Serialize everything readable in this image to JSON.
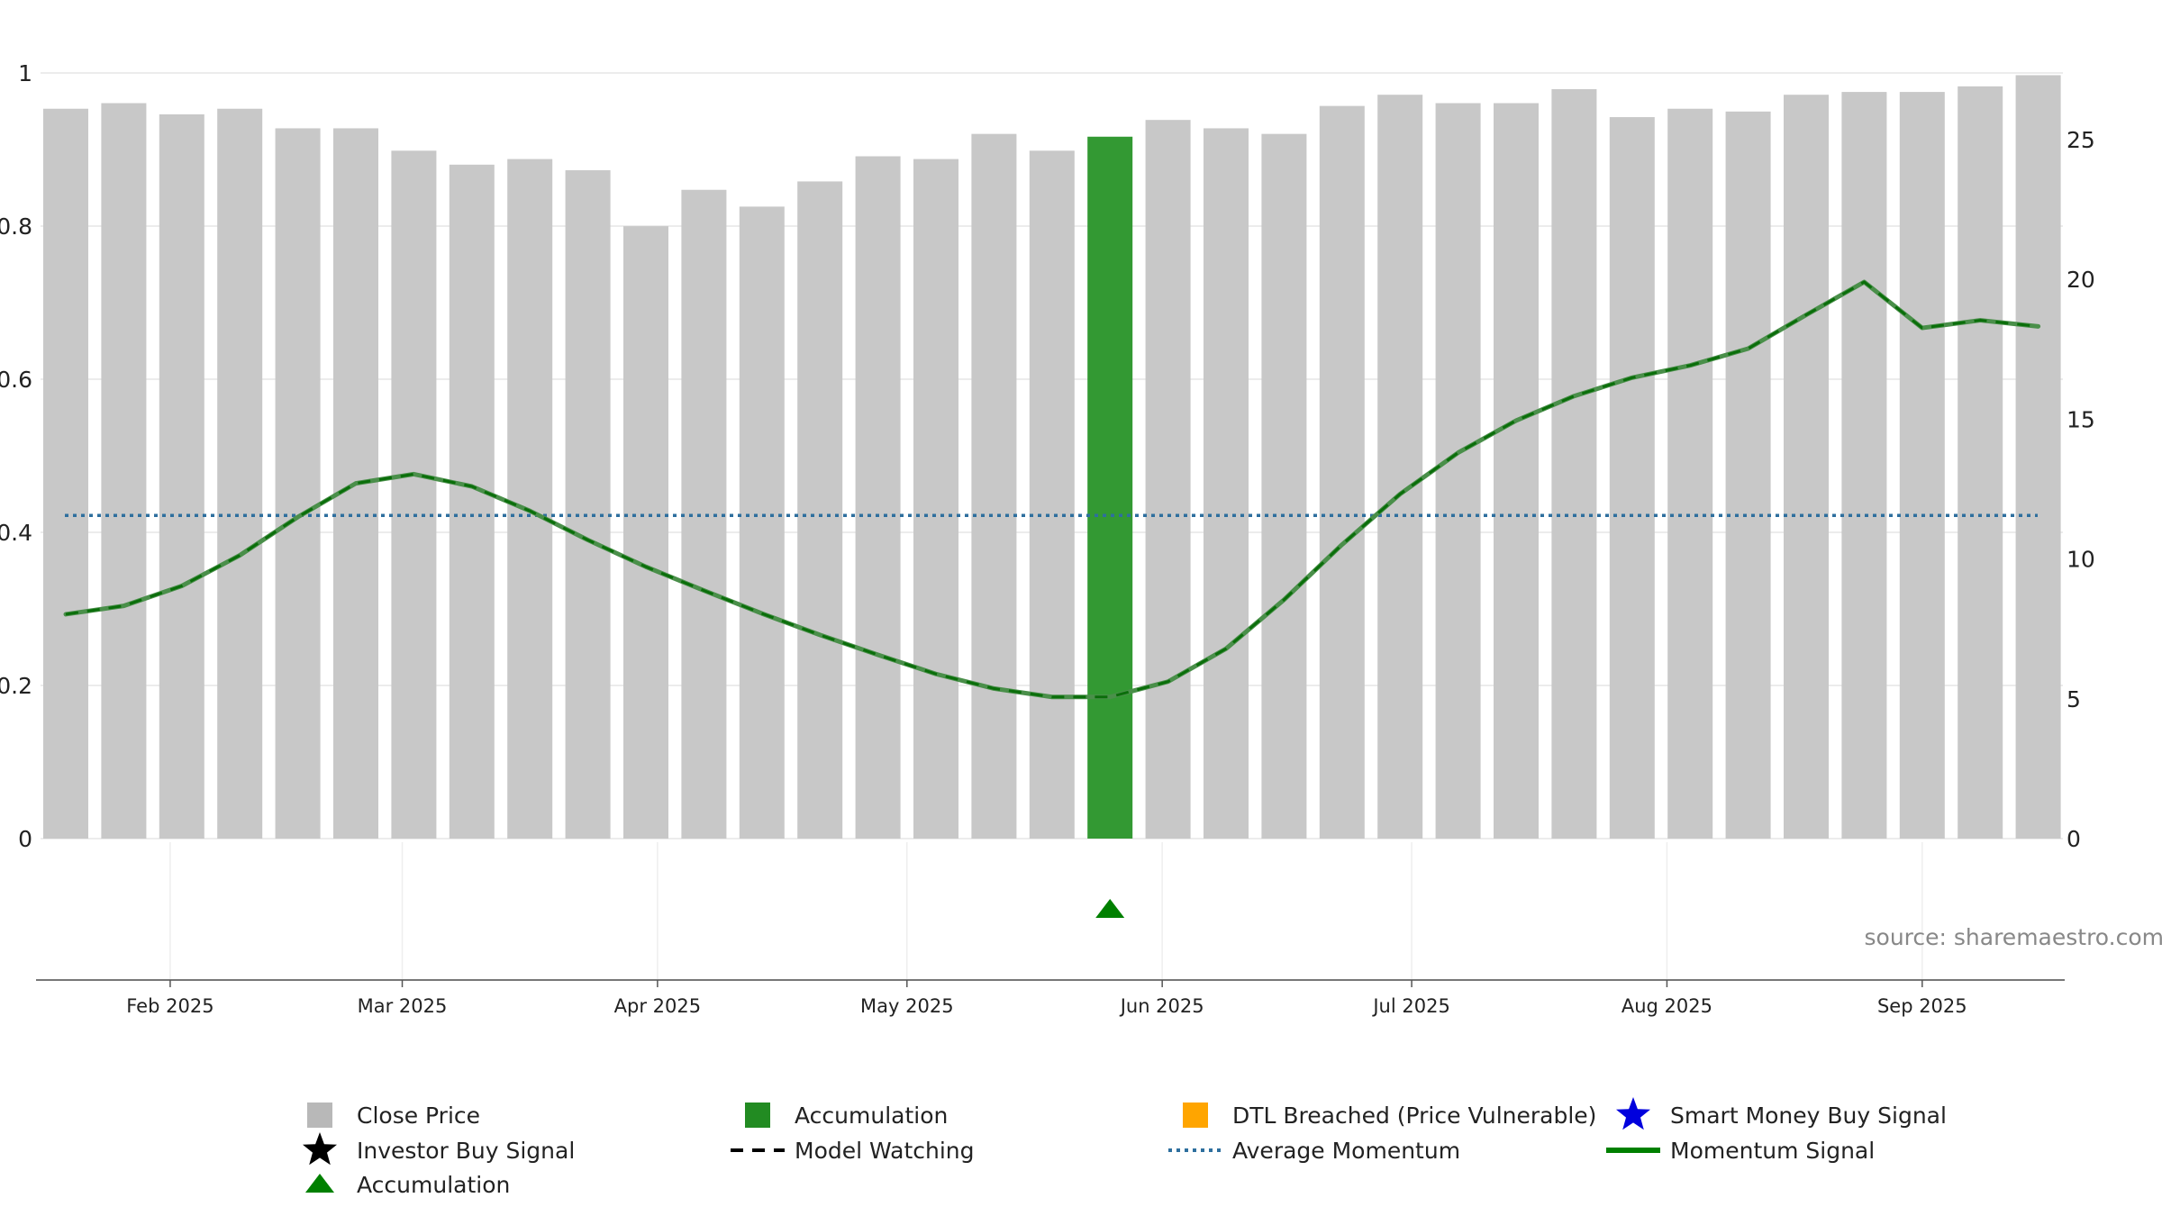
{
  "chart_data": {
    "type": "bar",
    "title": "",
    "source": "source: sharemaestro.com",
    "x": [
      "2025-01-20",
      "2025-01-27",
      "2025-02-03",
      "2025-02-10",
      "2025-02-17",
      "2025-02-24",
      "2025-03-03",
      "2025-03-10",
      "2025-03-17",
      "2025-03-24",
      "2025-03-31",
      "2025-04-07",
      "2025-04-14",
      "2025-04-21",
      "2025-04-28",
      "2025-05-05",
      "2025-05-12",
      "2025-05-19",
      "2025-05-26",
      "2025-06-02",
      "2025-06-09",
      "2025-06-16",
      "2025-06-23",
      "2025-06-30",
      "2025-07-07",
      "2025-07-14",
      "2025-07-21",
      "2025-07-28",
      "2025-08-04",
      "2025-08-11",
      "2025-08-18",
      "2025-08-25",
      "2025-09-01",
      "2025-09-08",
      "2025-09-15"
    ],
    "x_tick_labels": [
      "Feb 2025",
      "Mar 2025",
      "Apr 2025",
      "May 2025",
      "Jun 2025",
      "Jul 2025",
      "Aug 2025",
      "Sep 2025"
    ],
    "x_tick_positions": [
      1.8,
      5.8,
      10.2,
      14.5,
      18.9,
      23.2,
      27.6,
      32.0
    ],
    "y_left_ticks": [
      "0",
      "0.2",
      "0.4",
      "0.6",
      "0.8",
      "1"
    ],
    "y_left_range": [
      0,
      1
    ],
    "y_right_ticks": [
      "0",
      "5",
      "10",
      "15",
      "20",
      "25"
    ],
    "y_right_range": [
      0,
      28.7
    ],
    "series": [
      {
        "name": "Close Price",
        "type": "bar",
        "axis": "right",
        "color": "#c8c8c8",
        "values": [
          26.1,
          26.3,
          25.9,
          26.1,
          25.4,
          25.4,
          24.6,
          24.1,
          24.3,
          23.9,
          21.9,
          23.2,
          22.6,
          23.5,
          24.4,
          24.3,
          25.2,
          24.6,
          25.1,
          25.7,
          25.4,
          25.2,
          26.2,
          26.6,
          26.3,
          26.3,
          26.8,
          25.8,
          26.1,
          26.0,
          26.6,
          26.7,
          26.7,
          26.9,
          27.3
        ],
        "highlight_index": 18,
        "highlight_color": "#339933"
      },
      {
        "name": "Momentum Signal",
        "type": "line",
        "axis": "left",
        "color": "#4a8f4a",
        "values": [
          0.293,
          0.304,
          0.33,
          0.37,
          0.42,
          0.464,
          0.476,
          0.46,
          0.428,
          0.39,
          0.355,
          0.324,
          0.294,
          0.266,
          0.24,
          0.215,
          0.196,
          0.185,
          0.185,
          0.205,
          0.248,
          0.312,
          0.384,
          0.45,
          0.504,
          0.546,
          0.578,
          0.602,
          0.618,
          0.64,
          0.684,
          0.727,
          0.667,
          0.677,
          0.669
        ]
      },
      {
        "name": "Average Momentum",
        "type": "hline",
        "axis": "left",
        "color": "#2e6f9e",
        "value": 0.422
      }
    ],
    "markers": [
      {
        "name": "Accumulation",
        "shape": "triangle",
        "color": "#008000",
        "index": 18
      }
    ],
    "legend": [
      {
        "label": "Close Price",
        "icon": "square",
        "color": "#b8b8b8"
      },
      {
        "label": "Accumulation",
        "icon": "square",
        "color": "#228b22"
      },
      {
        "label": "DTL Breached (Price Vulnerable)",
        "icon": "square",
        "color": "#ffa500"
      },
      {
        "label": "Smart Money Buy Signal",
        "icon": "star",
        "color": "#0000dd"
      },
      {
        "label": "Investor Buy Signal",
        "icon": "star",
        "color": "#000000"
      },
      {
        "label": "Model Watching",
        "icon": "dash",
        "color": "#000000"
      },
      {
        "label": "Average Momentum",
        "icon": "dotted",
        "color": "#2e6f9e"
      },
      {
        "label": "Momentum Signal",
        "icon": "line",
        "color": "#008000"
      },
      {
        "label": "Accumulation",
        "icon": "triangle",
        "color": "#008000"
      }
    ],
    "grid": true
  }
}
